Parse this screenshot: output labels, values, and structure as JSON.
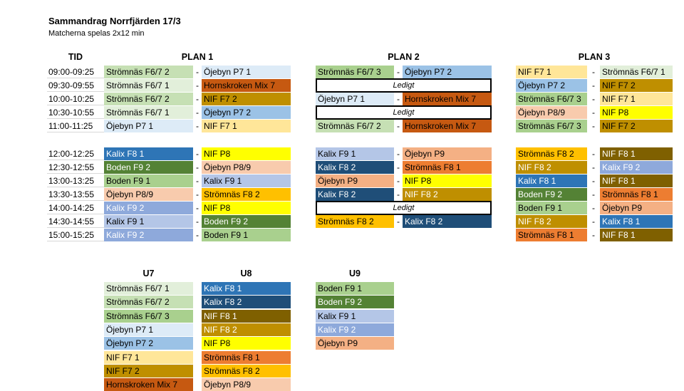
{
  "header": {
    "title": "Sammandrag Norrfjärden 17/3",
    "subtitle": "Matcherna spelas 2x12 min"
  },
  "columns": {
    "tid": "TID",
    "plan1": "PLAN 1",
    "plan2": "PLAN 2",
    "plan3": "PLAN 3"
  },
  "dash": "-",
  "ledigt": "Ledigt",
  "colors": {
    "stromnas_f671": "#e2efda",
    "stromnas_f672": "#c6e0b4",
    "stromnas_f673": "#a9d08e",
    "ojebyn_p71": "#ddebf7",
    "ojebyn_p72": "#9bc2e6",
    "nif_f71": "#ffe699",
    "nif_f72": "#bf8f00",
    "hornskroken_mix7": "#c65911",
    "kalix_f81": "#2e75b6",
    "kalix_f82": "#1f4e78",
    "nif_f81": "#7f6000",
    "nif_f82": "#bf8f00",
    "nif_p8": "#ffff00",
    "stromnas_f81": "#ed7d31",
    "stromnas_f82": "#ffc000",
    "ojebyn_p89": "#f8cbad",
    "kalix_f91": "#b4c6e7",
    "kalix_f92": "#8ea9db",
    "boden_f91": "#a9d08e",
    "boden_f92": "#548235",
    "ojebyn_p9": "#f4b084",
    "white_text": "#ffffff"
  },
  "times": [
    "09:00-09:25",
    "09:30-09:55",
    "10:00-10:25",
    "10:30-10:55",
    "11:00-11:25",
    "12:00-12:25",
    "12:30-12:55",
    "13:00-13:25",
    "13:30-13:55",
    "14:00-14:25",
    "14:30-14:55",
    "15:00-15:25"
  ],
  "plan1": [
    [
      "Strömnäs F6/7 2",
      "Öjebyn P7 1"
    ],
    [
      "Strömnäs F6/7 1",
      "Hornskroken Mix 7"
    ],
    [
      "Strömnäs F6/7 2",
      "NIF F7 2"
    ],
    [
      "Strömnäs F6/7 1",
      "Öjebyn P7 2"
    ],
    [
      "Öjebyn P7 1",
      "NIF F7 1"
    ],
    [
      "Kalix F8 1",
      "NIF P8"
    ],
    [
      "Boden F9 2",
      "Öjebyn P8/9"
    ],
    [
      "Boden F9 1",
      "Kalix F9 1"
    ],
    [
      "Öjebyn P8/9",
      "Strömnäs F8 2"
    ],
    [
      "Kalix F9 2",
      "NIF P8"
    ],
    [
      "Kalix F9 1",
      "Boden F9 2"
    ],
    [
      "Kalix F9 2",
      "Boden F9 1"
    ]
  ],
  "plan2": [
    [
      "Strömnäs F6/7 3",
      "Öjebyn P7 2"
    ],
    null,
    [
      "Öjebyn P7 1",
      "Hornskroken Mix 7"
    ],
    null,
    [
      "Strömnäs F6/7 2",
      "Hornskroken Mix 7"
    ],
    [
      "Kalix F9 1",
      "Öjebyn P9"
    ],
    [
      "Kalix F8 2",
      "Strömnäs F8 1"
    ],
    [
      "Öjebyn P9",
      "NIF P8"
    ],
    [
      "Kalix F8 2",
      "NIF F8 2"
    ],
    null,
    [
      "Strömnäs F8 2",
      "Kalix F8 2"
    ],
    "empty"
  ],
  "plan3": [
    [
      "NIF F7 1",
      "Strömnäs F6/7 1"
    ],
    [
      "Öjebyn P7 2",
      "NIF F7 2"
    ],
    [
      "Strömnäs F6/7 3",
      "NIF F7 1"
    ],
    [
      "Öjebyn P8/9",
      "NIF P8"
    ],
    [
      "Strömnäs F6/7 3",
      "NIF F7 2"
    ],
    [
      "Strömnäs F8 2",
      "NIF F8 1"
    ],
    [
      "NIF F8 2",
      "Kalix F9 2"
    ],
    [
      "Kalix F8 1",
      "NIF F8 1"
    ],
    [
      "Boden F9 2",
      "Strömnäs F8 1"
    ],
    [
      "Boden F9 1",
      "Öjebyn P9"
    ],
    [
      "NIF F8 2",
      "Kalix F8 1"
    ],
    [
      "Strömnäs F8 1",
      "NIF F8 1"
    ]
  ],
  "groups": {
    "u7": {
      "title": "U7",
      "teams": [
        "Strömnäs F6/7 1",
        "Strömnäs F6/7 2",
        "Strömnäs F6/7 3",
        "Öjebyn P7 1",
        "Öjebyn P7 2",
        "NIF F7 1",
        "NIF F7 2",
        "Hornskroken Mix 7"
      ]
    },
    "u8": {
      "title": "U8",
      "teams": [
        "Kalix F8 1",
        "Kalix F8 2",
        "NIF F8 1",
        "NIF F8 2",
        "NIF P8",
        "Strömnäs F8 1",
        "Strömnäs F8 2",
        "Öjebyn P8/9"
      ]
    },
    "u9": {
      "title": "U9",
      "teams": [
        "Boden F9 1",
        "Boden F9 2",
        "Kalix F9 1",
        "Kalix F9 2",
        "Öjebyn P9"
      ]
    }
  }
}
